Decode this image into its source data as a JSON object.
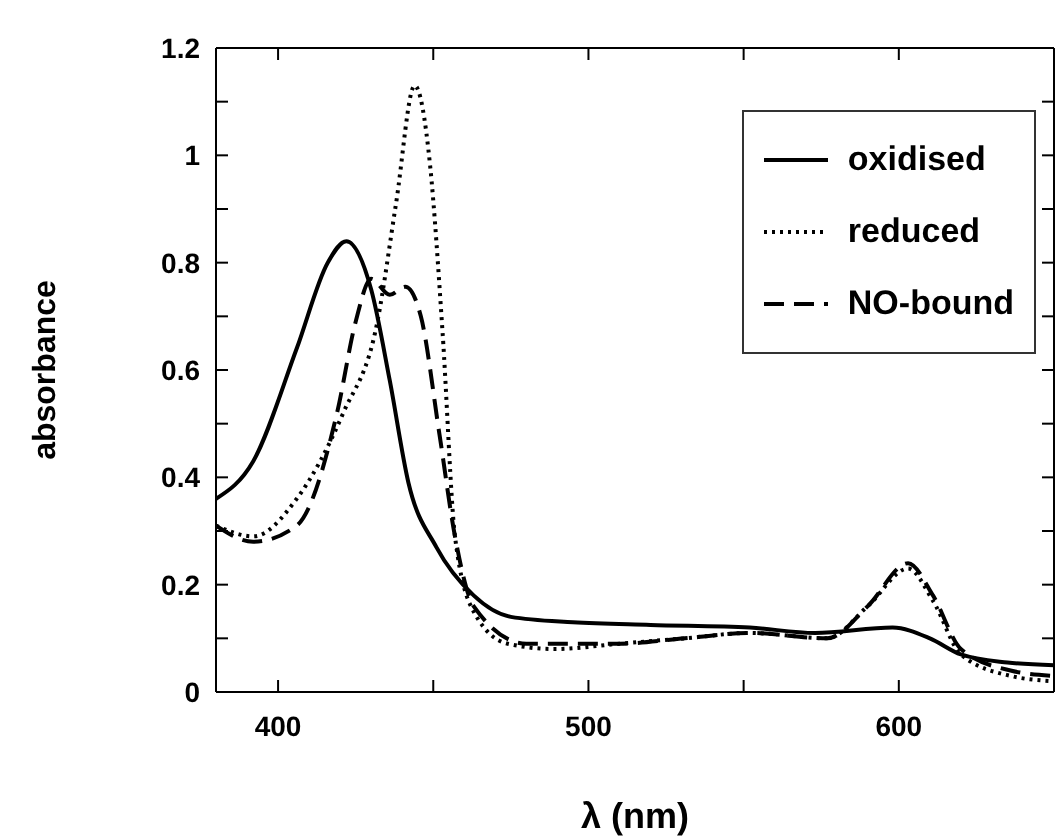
{
  "chart_data": {
    "type": "line",
    "xlabel": "λ (nm)",
    "ylabel": "absorbance",
    "xlim": [
      380,
      650
    ],
    "ylim": [
      0,
      1.2
    ],
    "xticks": [
      400,
      {
        "value": 450,
        "label": null
      },
      500,
      {
        "value": 550,
        "label": null
      },
      600
    ],
    "yticks": [
      0,
      {
        "value": 0.1,
        "label": null
      },
      0.2,
      {
        "value": 0.3,
        "label": null
      },
      0.4,
      {
        "value": 0.5,
        "label": null
      },
      0.6,
      {
        "value": 0.7,
        "label": null
      },
      0.8,
      {
        "value": 0.9,
        "label": null
      },
      1,
      {
        "value": 1.1,
        "label": null
      },
      1.2
    ],
    "legend": "top right",
    "grid": false,
    "marker": "none",
    "series": [
      {
        "name": "oxidised",
        "color": "#000000",
        "line_style": "solid",
        "x": [
          380,
          392,
          406,
          416,
          422,
          430,
          436,
          442,
          451,
          463,
          475,
          495,
          520,
          552,
          573,
          598,
          610,
          620,
          635,
          650
        ],
        "values": [
          0.36,
          0.43,
          0.64,
          0.8,
          0.84,
          0.75,
          0.58,
          0.39,
          0.27,
          0.18,
          0.14,
          0.13,
          0.125,
          0.12,
          0.11,
          0.12,
          0.1,
          0.07,
          0.055,
          0.05
        ]
      },
      {
        "name": "reduced",
        "color": "#000000",
        "line_style": "dotted",
        "x": [
          380,
          392,
          406,
          421,
          432,
          438,
          444,
          449,
          453,
          457,
          463,
          474,
          489,
          510,
          531,
          552,
          577,
          590,
          603,
          611,
          620,
          636,
          650
        ],
        "values": [
          0.31,
          0.29,
          0.36,
          0.52,
          0.69,
          0.91,
          1.13,
          0.98,
          0.67,
          0.29,
          0.15,
          0.09,
          0.08,
          0.09,
          0.1,
          0.11,
          0.1,
          0.16,
          0.23,
          0.17,
          0.07,
          0.03,
          0.02
        ]
      },
      {
        "name": "NO-bound",
        "color": "#000000",
        "line_style": "dashed",
        "x": [
          380,
          392,
          406,
          419,
          425,
          430,
          436,
          441,
          446,
          452,
          457,
          463,
          480,
          510,
          531,
          552,
          577,
          590,
          603,
          611,
          620,
          636,
          650
        ],
        "values": [
          0.31,
          0.28,
          0.31,
          0.52,
          0.69,
          0.77,
          0.74,
          0.755,
          0.7,
          0.48,
          0.29,
          0.16,
          0.09,
          0.09,
          0.1,
          0.11,
          0.1,
          0.16,
          0.24,
          0.18,
          0.08,
          0.04,
          0.03
        ]
      }
    ]
  }
}
